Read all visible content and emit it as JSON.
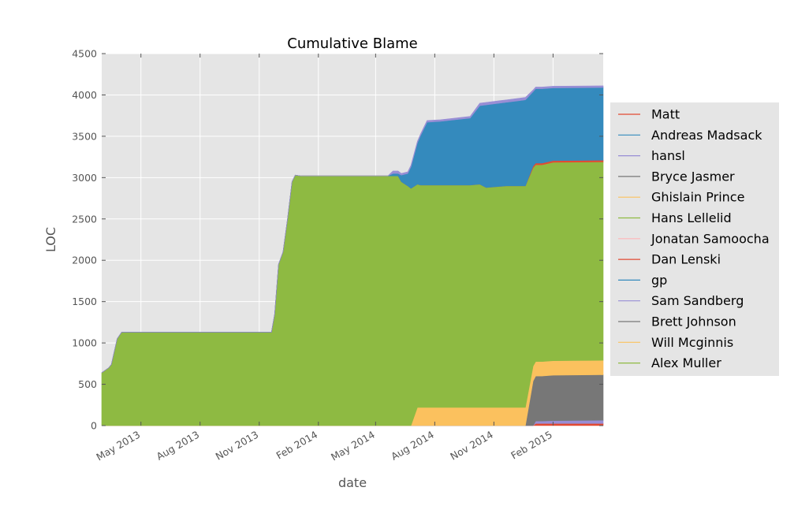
{
  "chart_data": {
    "type": "area",
    "stacked": true,
    "title": "Cumulative Blame",
    "xlabel": "date",
    "ylabel": "LOC",
    "xlim": [
      "2013-03-01",
      "2015-04-20"
    ],
    "ylim": [
      0,
      4500
    ],
    "yticks": [
      0,
      500,
      1000,
      1500,
      2000,
      2500,
      3000,
      3500,
      4000,
      4500
    ],
    "xticks": [
      {
        "date": "2013-05-01",
        "label": "May 2013"
      },
      {
        "date": "2013-08-01",
        "label": "Aug 2013"
      },
      {
        "date": "2013-11-01",
        "label": "Nov 2013"
      },
      {
        "date": "2014-02-01",
        "label": "Feb 2014"
      },
      {
        "date": "2014-05-01",
        "label": "May 2014"
      },
      {
        "date": "2014-08-01",
        "label": "Aug 2014"
      },
      {
        "date": "2014-11-01",
        "label": "Nov 2014"
      },
      {
        "date": "2015-02-01",
        "label": "Feb 2015"
      }
    ],
    "grid": true,
    "legend_position": "right",
    "x": [
      "2013-03-01",
      "2013-03-12",
      "2013-03-16",
      "2013-03-25",
      "2013-04-01",
      "2013-11-20",
      "2013-11-25",
      "2013-12-01",
      "2013-12-08",
      "2013-12-15",
      "2013-12-22",
      "2013-12-27",
      "2014-01-05",
      "2014-02-01",
      "2014-05-20",
      "2014-05-28",
      "2014-06-05",
      "2014-06-10",
      "2014-06-20",
      "2014-06-25",
      "2014-07-05",
      "2014-07-10",
      "2014-07-20",
      "2014-08-10",
      "2014-09-25",
      "2014-10-10",
      "2014-10-20",
      "2014-11-20",
      "2014-12-10",
      "2014-12-20",
      "2015-01-01",
      "2015-01-05",
      "2015-01-15",
      "2015-02-01",
      "2015-04-20"
    ],
    "series": [
      {
        "name": "Matt",
        "color": "#E24A33",
        "values": [
          0,
          0,
          0,
          0,
          0,
          0,
          0,
          0,
          0,
          0,
          0,
          0,
          0,
          0,
          0,
          0,
          0,
          0,
          0,
          0,
          0,
          0,
          0,
          0,
          0,
          0,
          0,
          0,
          0,
          0,
          0,
          25,
          25,
          25,
          25
        ]
      },
      {
        "name": "Andreas Madsack",
        "color": "#348ABD",
        "values": [
          0,
          0,
          0,
          0,
          0,
          0,
          0,
          0,
          0,
          0,
          0,
          0,
          0,
          0,
          0,
          0,
          0,
          0,
          0,
          0,
          0,
          0,
          0,
          0,
          0,
          0,
          0,
          0,
          0,
          0,
          0,
          0,
          0,
          0,
          0
        ]
      },
      {
        "name": "hansl",
        "color": "#988ED5",
        "values": [
          0,
          0,
          0,
          0,
          0,
          0,
          0,
          0,
          0,
          0,
          0,
          0,
          0,
          0,
          0,
          0,
          0,
          0,
          0,
          0,
          0,
          0,
          0,
          0,
          0,
          0,
          0,
          0,
          0,
          0,
          0,
          30,
          30,
          35,
          40
        ]
      },
      {
        "name": "Bryce Jasmer",
        "color": "#777777",
        "values": [
          0,
          0,
          0,
          0,
          0,
          0,
          0,
          0,
          0,
          0,
          0,
          0,
          0,
          0,
          0,
          0,
          0,
          0,
          0,
          0,
          0,
          0,
          0,
          0,
          0,
          0,
          0,
          0,
          0,
          0,
          540,
          545,
          545,
          550,
          550
        ]
      },
      {
        "name": "Ghislain Prince",
        "color": "#FBC15E",
        "values": [
          0,
          0,
          0,
          0,
          0,
          0,
          0,
          0,
          0,
          0,
          0,
          0,
          0,
          0,
          0,
          0,
          0,
          0,
          0,
          0,
          220,
          220,
          220,
          220,
          220,
          220,
          220,
          220,
          220,
          220,
          180,
          175,
          175,
          175,
          175
        ]
      },
      {
        "name": "Hans Lellelid",
        "color": "#8EBA42",
        "values": [
          640,
          700,
          740,
          1050,
          1130,
          1130,
          1350,
          1950,
          2100,
          2500,
          2950,
          3030,
          3020,
          3020,
          3020,
          3020,
          3020,
          2950,
          2900,
          2870,
          2700,
          2690,
          2690,
          2690,
          2690,
          2700,
          2660,
          2680,
          2680,
          2680,
          2400,
          2380,
          2380,
          2400,
          2400
        ]
      },
      {
        "name": "Jonatan Samoocha",
        "color": "#FFB5B8",
        "values": [
          0,
          0,
          0,
          0,
          0,
          0,
          0,
          0,
          0,
          0,
          0,
          0,
          0,
          0,
          0,
          0,
          0,
          0,
          0,
          0,
          0,
          0,
          0,
          0,
          0,
          0,
          0,
          0,
          0,
          0,
          0,
          0,
          0,
          0,
          0
        ]
      },
      {
        "name": "Dan Lenski",
        "color": "#E24A33",
        "values": [
          0,
          0,
          0,
          0,
          0,
          0,
          0,
          0,
          0,
          0,
          0,
          0,
          0,
          0,
          0,
          0,
          0,
          0,
          0,
          0,
          0,
          0,
          0,
          0,
          0,
          0,
          0,
          0,
          0,
          0,
          20,
          20,
          20,
          20,
          20
        ]
      },
      {
        "name": "gp",
        "color": "#348ABD",
        "values": [
          0,
          0,
          0,
          0,
          0,
          0,
          0,
          0,
          0,
          0,
          0,
          0,
          0,
          0,
          0,
          0,
          0,
          0,
          0,
          0,
          0,
          0,
          0,
          0,
          0,
          0,
          0,
          0,
          0,
          0,
          0,
          0,
          0,
          0,
          0
        ]
      },
      {
        "name": "Sam Sandberg",
        "color": "#988ED5",
        "values": [
          0,
          0,
          0,
          0,
          0,
          0,
          0,
          0,
          0,
          0,
          0,
          0,
          0,
          0,
          0,
          0,
          0,
          0,
          0,
          0,
          0,
          0,
          0,
          0,
          0,
          0,
          0,
          0,
          0,
          0,
          0,
          0,
          0,
          0,
          0
        ]
      },
      {
        "name": "Brett Johnson",
        "color": "#777777",
        "values": [
          0,
          0,
          0,
          0,
          0,
          0,
          0,
          0,
          0,
          0,
          0,
          0,
          0,
          0,
          0,
          0,
          0,
          0,
          0,
          0,
          0,
          0,
          0,
          0,
          0,
          0,
          0,
          0,
          0,
          0,
          0,
          0,
          0,
          0,
          0
        ]
      },
      {
        "name": "Will Mcginnis",
        "color": "#FBC15E",
        "values": [
          0,
          0,
          0,
          0,
          0,
          0,
          0,
          0,
          0,
          0,
          0,
          0,
          0,
          0,
          0,
          0,
          0,
          0,
          0,
          0,
          0,
          0,
          0,
          0,
          0,
          0,
          0,
          0,
          0,
          0,
          0,
          0,
          0,
          0,
          0
        ]
      },
      {
        "name": "Alex Muller",
        "color": "#8EBA42",
        "values": [
          0,
          0,
          0,
          0,
          0,
          0,
          0,
          0,
          0,
          0,
          0,
          0,
          0,
          0,
          0,
          0,
          0,
          0,
          0,
          0,
          0,
          0,
          0,
          0,
          0,
          0,
          0,
          0,
          0,
          0,
          0,
          0,
          0,
          0,
          0
        ]
      }
    ],
    "unlisted_top_layers": [
      {
        "color": "#348ABD",
        "values": [
          0,
          0,
          0,
          0,
          0,
          0,
          0,
          0,
          0,
          0,
          0,
          0,
          0,
          0,
          0,
          30,
          30,
          80,
          150,
          260,
          500,
          600,
          760,
          770,
          810,
          950,
          1000,
          1010,
          1030,
          1040,
          900,
          900,
          900,
          880,
          880
        ]
      },
      {
        "color": "#988ED5",
        "values": [
          0,
          0,
          0,
          0,
          0,
          0,
          0,
          0,
          0,
          0,
          0,
          0,
          0,
          0,
          0,
          30,
          30,
          20,
          20,
          20,
          20,
          20,
          20,
          20,
          20,
          30,
          30,
          30,
          30,
          30,
          20,
          20,
          20,
          20,
          20
        ]
      },
      {
        "color": "#777777",
        "values": [
          0,
          0,
          0,
          0,
          0,
          0,
          0,
          0,
          0,
          0,
          0,
          0,
          0,
          0,
          0,
          0,
          0,
          0,
          0,
          0,
          0,
          0,
          0,
          0,
          0,
          0,
          0,
          0,
          0,
          0,
          0,
          0,
          0,
          0,
          0
        ]
      }
    ]
  }
}
